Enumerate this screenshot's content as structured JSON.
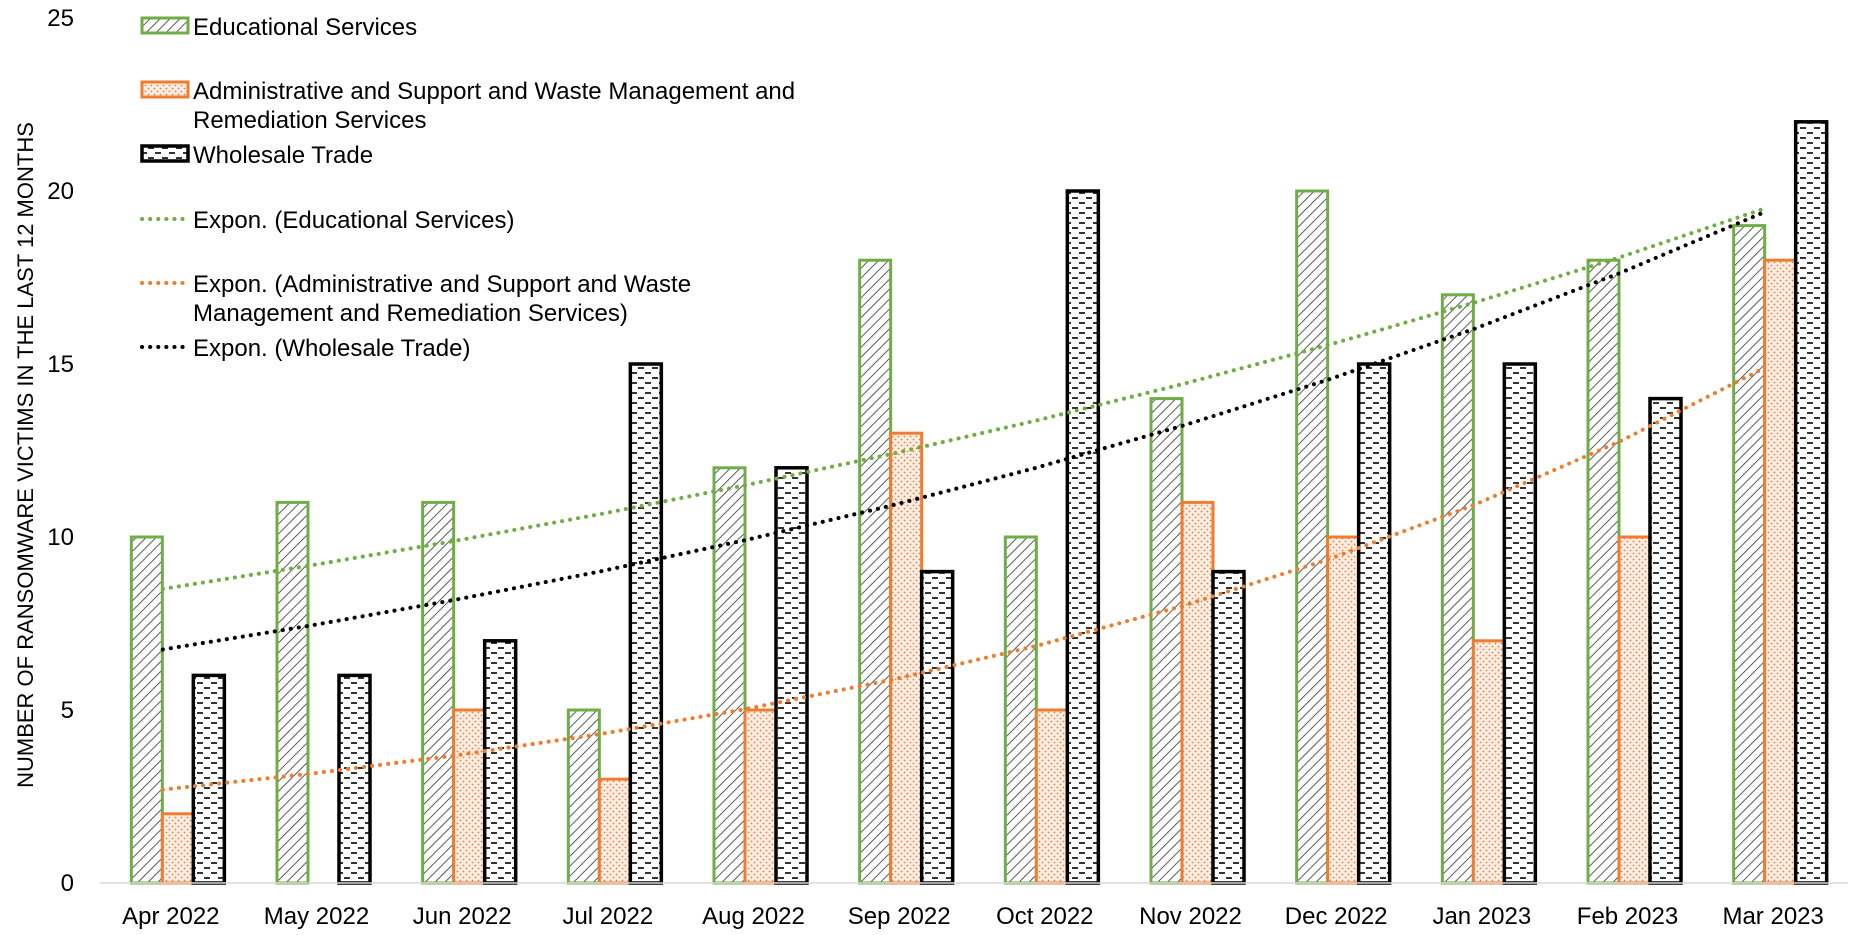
{
  "chart_data": {
    "type": "bar",
    "title": "",
    "xlabel": "",
    "ylabel": "NUMBER OF RANSOMWARE VICTIMS IN THE LAST 12 MONTHS",
    "ylim": [
      0,
      25
    ],
    "yticks": [
      "0",
      "5",
      "10",
      "15",
      "20",
      "25"
    ],
    "grid": false,
    "legend_position": "top-left",
    "categories": [
      "Apr 2022",
      "May 2022",
      "Jun 2022",
      "Jul 2022",
      "Aug 2022",
      "Sep 2022",
      "Oct 2022",
      "Nov 2022",
      "Dec 2022",
      "Jan 2023",
      "Feb 2023",
      "Mar 2023"
    ],
    "series": [
      {
        "name": "Educational Services",
        "color": "#70ad47",
        "pattern": "diagonal-hatch",
        "values": [
          10,
          11,
          11,
          5,
          12,
          18,
          10,
          14,
          20,
          17,
          18,
          19
        ]
      },
      {
        "name": "Administrative and Support and Waste Management and Remediation Services",
        "legend_lines": [
          "Administrative and Support and Waste Management and",
          "Remediation Services"
        ],
        "color": "#ed7d31",
        "pattern": "dots",
        "values": [
          2,
          0,
          5,
          3,
          5,
          13,
          5,
          11,
          10,
          7,
          10,
          18
        ]
      },
      {
        "name": "Wholesale Trade",
        "color": "#000000",
        "pattern": "dashes",
        "values": [
          6,
          6,
          7,
          15,
          12,
          9,
          20,
          9,
          15,
          15,
          14,
          22
        ]
      }
    ],
    "trendlines": [
      {
        "name": "Expon. (Educational Services)",
        "legend_lines": [
          "Expon. (Educational Services)"
        ],
        "color": "#70ad47",
        "type": "exponential",
        "start": 8.5,
        "end": 19.5
      },
      {
        "name": "Expon. (Administrative and Support and Waste Management and Remediation Services)",
        "legend_lines": [
          "Expon. (Administrative and Support and Waste",
          "Management and Remediation Services)"
        ],
        "color": "#ed7d31",
        "type": "exponential",
        "start": 2.7,
        "end": 14.9
      },
      {
        "name": "Expon. (Wholesale Trade)",
        "legend_lines": [
          "Expon. (Wholesale Trade)"
        ],
        "color": "#000000",
        "type": "exponential",
        "start": 6.75,
        "end": 19.4
      }
    ]
  }
}
